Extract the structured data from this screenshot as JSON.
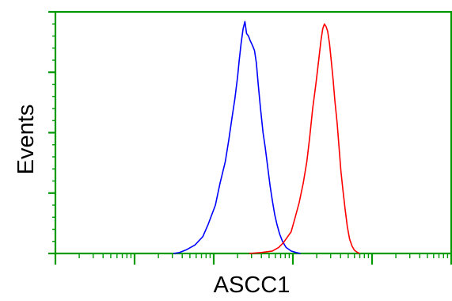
{
  "chart_data": {
    "type": "line",
    "title": "",
    "xlabel": "ASCC1",
    "ylabel": "Events",
    "x_scale": "log",
    "grid": false,
    "legend": "none",
    "frame_color": "#009900",
    "xlim": [
      0.1,
      10000
    ],
    "ylim": [
      0,
      100
    ],
    "series": [
      {
        "color": "#0000ff",
        "points": [
          [
            3.1,
            0
          ],
          [
            3.7,
            0.4
          ],
          [
            4.5,
            1.5
          ],
          [
            5.8,
            3.5
          ],
          [
            7.3,
            7
          ],
          [
            8.5,
            12
          ],
          [
            10.5,
            20
          ],
          [
            12,
            29
          ],
          [
            14,
            38
          ],
          [
            15.5,
            47
          ],
          [
            17,
            56
          ],
          [
            18.5,
            64
          ],
          [
            20,
            73
          ],
          [
            21,
            80
          ],
          [
            22.2,
            87
          ],
          [
            23.5,
            93
          ],
          [
            24.8,
            96
          ],
          [
            26,
            91
          ],
          [
            27.5,
            90
          ],
          [
            29,
            88
          ],
          [
            31,
            86
          ],
          [
            32.7,
            84
          ],
          [
            34.5,
            79
          ],
          [
            36.5,
            70
          ],
          [
            39,
            60
          ],
          [
            42,
            50
          ],
          [
            44.7,
            44
          ],
          [
            48,
            36
          ],
          [
            51.5,
            28
          ],
          [
            55,
            22
          ],
          [
            59,
            16
          ],
          [
            63,
            12
          ],
          [
            68,
            8
          ],
          [
            74,
            5
          ],
          [
            82,
            2.5
          ],
          [
            95,
            1
          ],
          [
            110,
            0.4
          ],
          [
            125,
            0
          ]
        ]
      },
      {
        "color": "#ff0000",
        "points": [
          [
            28,
            0
          ],
          [
            40,
            0.4
          ],
          [
            55,
            1
          ],
          [
            66,
            2.5
          ],
          [
            76,
            4.5
          ],
          [
            84,
            6.5
          ],
          [
            95,
            9
          ],
          [
            105,
            14
          ],
          [
            120,
            21
          ],
          [
            135,
            29
          ],
          [
            150,
            38
          ],
          [
            163,
            48
          ],
          [
            178,
            60
          ],
          [
            195,
            70
          ],
          [
            212,
            80
          ],
          [
            226,
            88
          ],
          [
            238,
            93
          ],
          [
            250,
            95
          ],
          [
            262,
            94
          ],
          [
            275,
            92
          ],
          [
            290,
            87
          ],
          [
            305,
            80
          ],
          [
            322,
            72
          ],
          [
            340,
            63
          ],
          [
            362,
            54
          ],
          [
            383,
            44
          ],
          [
            405,
            34
          ],
          [
            430,
            26
          ],
          [
            458,
            18
          ],
          [
            488,
            11
          ],
          [
            520,
            6
          ],
          [
            560,
            3
          ],
          [
            600,
            1.3
          ],
          [
            650,
            0.5
          ],
          [
            700,
            0
          ]
        ]
      }
    ]
  }
}
